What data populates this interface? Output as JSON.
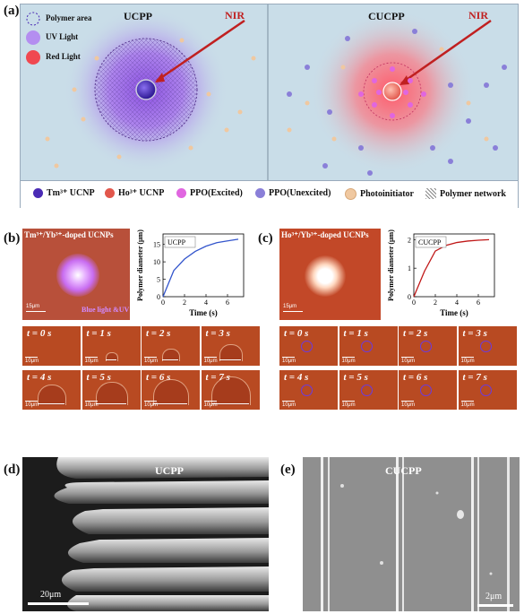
{
  "panel_a": {
    "label": "(a)",
    "left_title": "UCPP",
    "right_title": "CUCPP",
    "nir": "NIR",
    "key": [
      {
        "text": "Polymer area"
      },
      {
        "text": "UV Light"
      },
      {
        "text": "Red Light"
      }
    ],
    "legend": [
      {
        "text": "Tm³⁺ UCNP",
        "color": "#4a2bb5"
      },
      {
        "text": "Ho³⁺ UCNP",
        "color": "#e2574c"
      },
      {
        "text": "PPO(Excited)",
        "color": "#e066e0"
      },
      {
        "text": "PPO(Unexcited)",
        "color": "#8a7fd8"
      },
      {
        "text": "Photoinitiator",
        "color": "#f0c8a0"
      },
      {
        "text": "Polymer network",
        "color": "#888888"
      }
    ]
  },
  "panel_b": {
    "label": "(b)",
    "image_title": "Tm³⁺/Yb³⁺-doped UCNPs",
    "image_annotation": "Blue light &UV",
    "image_scale": "15μm",
    "frame_scale": "10μm",
    "frames": [
      "t = 0 s",
      "t = 1 s",
      "t = 2 s",
      "t = 3 s",
      "t = 4 s",
      "t = 5 s",
      "t = 6 s",
      "t = 7 s"
    ]
  },
  "panel_c": {
    "label": "(c)",
    "image_title": "Ho³⁺/Yb³⁺-doped UCNPs",
    "image_scale": "15μm",
    "frame_scale": "10μm",
    "frames": [
      "t = 0 s",
      "t = 1 s",
      "t = 2 s",
      "t = 3 s",
      "t = 4 s",
      "t = 5 s",
      "t = 6 s",
      "t = 7 s"
    ]
  },
  "panel_d": {
    "label": "(d)",
    "title": "UCPP",
    "scale": "20μm"
  },
  "panel_e": {
    "label": "(e)",
    "title": "CUCPP",
    "scale": "2μm"
  },
  "chart_data": [
    {
      "type": "line",
      "legend": "UCPP",
      "xlabel": "Time (s)",
      "ylabel": "Polymer diameter (μm)",
      "xlim": [
        0,
        7.5
      ],
      "ylim": [
        0,
        18
      ],
      "xticks": [
        0,
        2,
        4,
        6
      ],
      "yticks": [
        0,
        5,
        10,
        15
      ],
      "x": [
        0,
        1,
        2,
        3,
        4,
        5,
        6,
        7
      ],
      "y": [
        0,
        7.5,
        10.8,
        13,
        14.5,
        15.5,
        16,
        16.5
      ],
      "color": "#3355cc"
    },
    {
      "type": "line",
      "legend": "CUCPP",
      "xlabel": "Time (s)",
      "ylabel": "Polymer diameter (μm)",
      "xlim": [
        0,
        7.5
      ],
      "ylim": [
        0,
        2.2
      ],
      "xticks": [
        0,
        2,
        4,
        6
      ],
      "yticks": [
        0,
        1,
        2
      ],
      "x": [
        0,
        1,
        2,
        3,
        4,
        5,
        6,
        7
      ],
      "y": [
        0,
        0.9,
        1.6,
        1.8,
        1.9,
        1.95,
        1.98,
        2.0
      ],
      "color": "#c01818"
    }
  ]
}
